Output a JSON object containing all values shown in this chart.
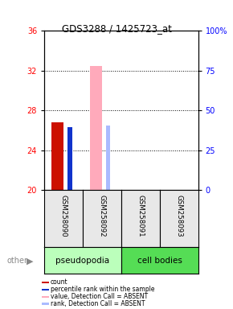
{
  "title": "GDS3288 / 1425723_at",
  "samples": [
    "GSM258090",
    "GSM258092",
    "GSM258091",
    "GSM258093"
  ],
  "groups": [
    "pseudopodia",
    "pseudopodia",
    "cell bodies",
    "cell bodies"
  ],
  "ylim_left": [
    20,
    36
  ],
  "ylim_right": [
    0,
    100
  ],
  "yticks_left": [
    20,
    24,
    28,
    32,
    36
  ],
  "yticks_right": [
    0,
    25,
    50,
    75,
    100
  ],
  "yticklabels_right": [
    "0",
    "25",
    "50",
    "75",
    "100%"
  ],
  "bars": [
    {
      "x": 0,
      "count": 26.8,
      "rank": 26.3,
      "absent_value": null,
      "absent_rank": null
    },
    {
      "x": 1,
      "count": null,
      "rank": null,
      "absent_value": 32.5,
      "absent_rank": 26.5
    },
    {
      "x": 2,
      "count": null,
      "rank": 19.85,
      "absent_value": null,
      "absent_rank": null
    },
    {
      "x": 3,
      "count": null,
      "rank": 19.85,
      "absent_value": null,
      "absent_rank": null
    }
  ],
  "bar_width": 0.32,
  "thin_bar_width": 0.12,
  "count_color": "#cc1100",
  "rank_color": "#1133cc",
  "absent_value_color": "#ffaabb",
  "absent_rank_color": "#aabbff",
  "legend_items": [
    {
      "color": "#cc1100",
      "label": "count"
    },
    {
      "color": "#1133cc",
      "label": "percentile rank within the sample"
    },
    {
      "color": "#ffaabb",
      "label": "value, Detection Call = ABSENT"
    },
    {
      "color": "#aabbff",
      "label": "rank, Detection Call = ABSENT"
    }
  ],
  "bg_color": "#e8e8e8",
  "pseudo_color": "#bbffbb",
  "cell_color": "#55dd55"
}
